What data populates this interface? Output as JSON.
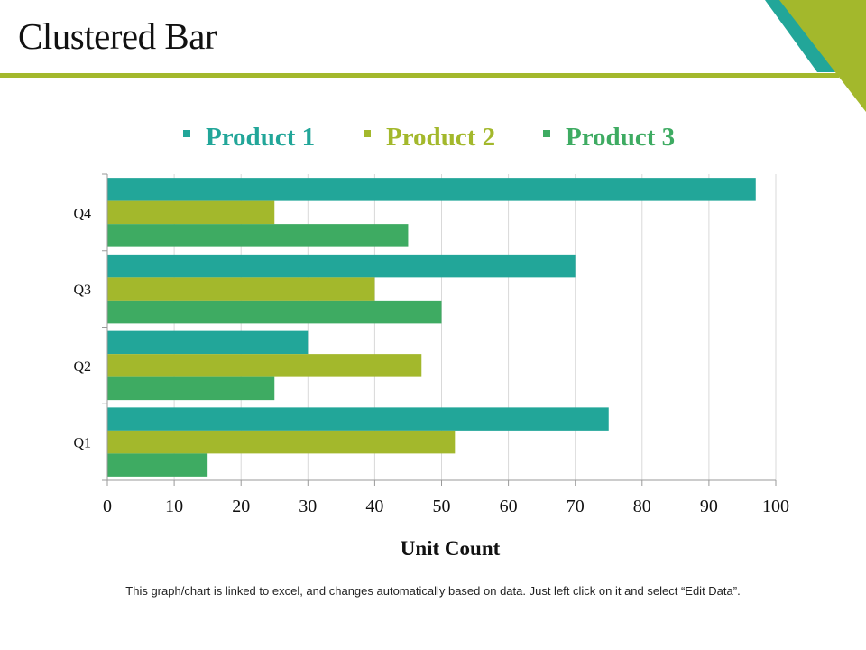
{
  "slide": {
    "title": "Clustered Bar",
    "footnote": "This graph/chart is linked to excel, and changes automatically  based on data. Just left click on it and select “Edit Data”."
  },
  "colors": {
    "accent_green": "#a3b82c",
    "accent_teal": "#22a699",
    "series_1": "#22a699",
    "series_2": "#a3b82c",
    "series_3": "#3eab62",
    "grid": "#d9d9d9",
    "axis": "#9a9a9a"
  },
  "chart_data": {
    "type": "bar",
    "orientation": "horizontal",
    "categories": [
      "Q1",
      "Q2",
      "Q3",
      "Q4"
    ],
    "series": [
      {
        "name": "Product 1",
        "values": [
          75,
          30,
          70,
          97
        ]
      },
      {
        "name": "Product 2",
        "values": [
          52,
          47,
          40,
          25
        ]
      },
      {
        "name": "Product 3",
        "values": [
          15,
          25,
          50,
          45
        ]
      }
    ],
    "title": "",
    "xlabel": "Unit Count",
    "ylabel": "",
    "xlim": [
      0,
      100
    ],
    "xticks": [
      "0",
      "10",
      "20",
      "30",
      "40",
      "50",
      "60",
      "70",
      "80",
      "90",
      "100"
    ],
    "grid": true,
    "legend": "top"
  }
}
